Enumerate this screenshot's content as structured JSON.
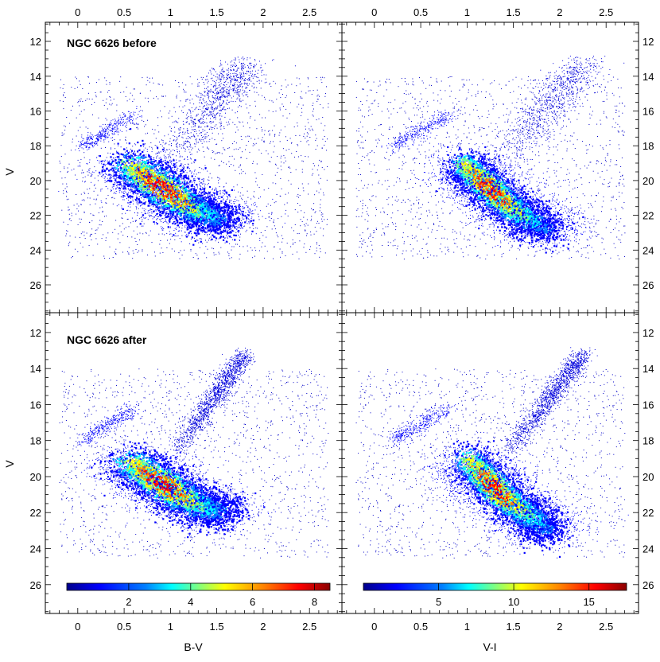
{
  "chart_data": {
    "type": "heatmap",
    "shared": {
      "ylabel": "V",
      "yticks": [
        12,
        14,
        16,
        18,
        20,
        22,
        24,
        26
      ],
      "ylim": [
        27.6,
        10.9
      ],
      "xlim": [
        -0.35,
        2.85
      ],
      "xticks": [
        "0",
        "0.5",
        "1",
        "1.5",
        "2",
        "2.5"
      ]
    },
    "panels": [
      {
        "id": "bv_before",
        "label": "NGC 6626 before",
        "x_axis": "B-V",
        "density_ridge": [
          [
            0.55,
            19.0
          ],
          [
            0.8,
            20.0
          ],
          [
            1.05,
            21.0
          ],
          [
            1.3,
            21.8
          ],
          [
            1.55,
            22.3
          ]
        ]
      },
      {
        "id": "vi_before",
        "label": "",
        "x_axis": "V-I",
        "density_ridge": [
          [
            0.95,
            19.0
          ],
          [
            1.15,
            20.0
          ],
          [
            1.35,
            21.0
          ],
          [
            1.6,
            22.0
          ],
          [
            1.9,
            22.9
          ]
        ]
      },
      {
        "id": "bv_after",
        "label": "NGC 6626 after",
        "x_axis": "B-V",
        "density_ridge": [
          [
            0.55,
            19.1
          ],
          [
            0.8,
            20.0
          ],
          [
            1.05,
            20.9
          ],
          [
            1.3,
            21.6
          ],
          [
            1.55,
            22.0
          ]
        ]
      },
      {
        "id": "vi_after",
        "label": "",
        "x_axis": "V-I",
        "density_ridge": [
          [
            1.0,
            19.0
          ],
          [
            1.2,
            20.1
          ],
          [
            1.4,
            21.2
          ],
          [
            1.65,
            22.1
          ],
          [
            1.9,
            23.0
          ]
        ]
      }
    ],
    "colorbars": [
      {
        "panel": "bv_after",
        "range": [
          0,
          8.5
        ],
        "ticks": [
          "2",
          "4",
          "6",
          "8"
        ]
      },
      {
        "panel": "vi_after",
        "range": [
          0,
          17.5
        ],
        "ticks": [
          "5",
          "10",
          "15"
        ]
      }
    ],
    "colormap": [
      "#00008b",
      "#0000ff",
      "#0080ff",
      "#00ffff",
      "#80ff80",
      "#ffff00",
      "#ff8000",
      "#ff0000",
      "#8b0000"
    ]
  }
}
